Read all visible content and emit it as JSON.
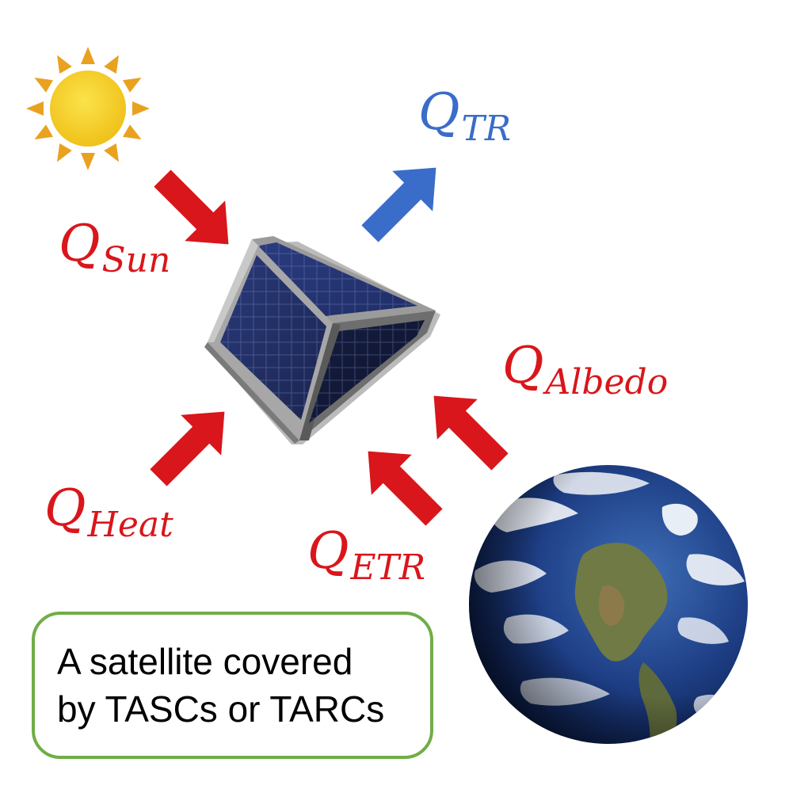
{
  "labels": {
    "sun": {
      "q": "Q",
      "sub": "Sun"
    },
    "tr": {
      "q": "Q",
      "sub": "TR"
    },
    "albedo": {
      "q": "Q",
      "sub": "Albedo"
    },
    "heat": {
      "q": "Q",
      "sub": "Heat"
    },
    "etr": {
      "q": "Q",
      "sub": "ETR"
    }
  },
  "caption": {
    "line1": "A satellite covered",
    "line2": "by TASCs or TARCs"
  },
  "colors": {
    "incoming": "#d9161b",
    "outgoing": "#3a6cc9",
    "caption_border": "#70ad47",
    "sun_core": "#f2c81a",
    "sun_rays": "#e9a21f"
  },
  "icons": {
    "sun": "sun-icon",
    "satellite": "satellite-cube-icon",
    "earth": "earth-globe-icon"
  }
}
